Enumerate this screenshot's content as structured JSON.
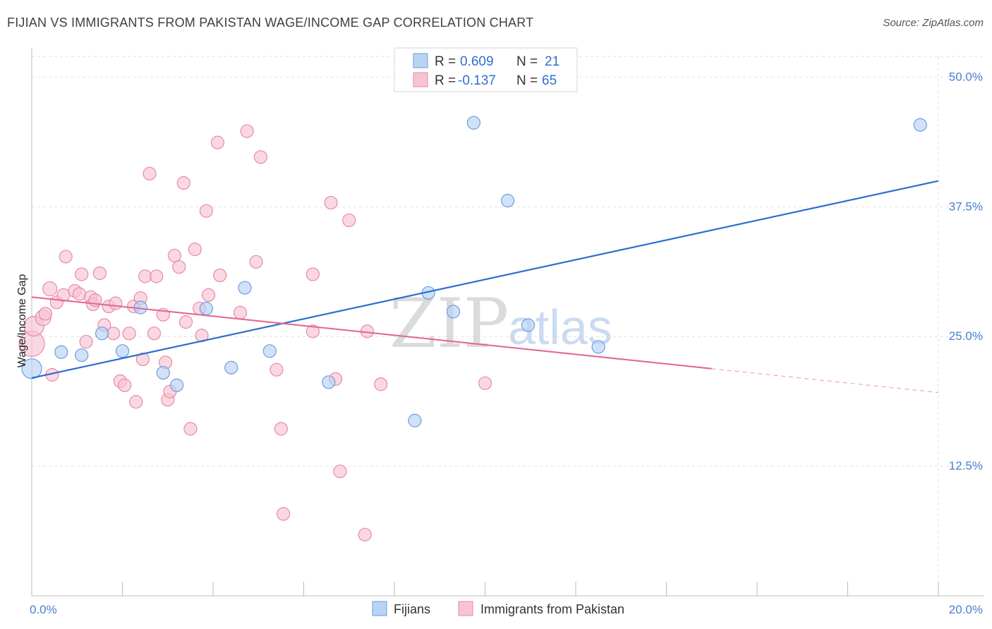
{
  "header": {
    "title": "FIJIAN VS IMMIGRANTS FROM PAKISTAN WAGE/INCOME GAP CORRELATION CHART",
    "source": "Source: ZipAtlas.com"
  },
  "watermark": {
    "zip": "ZIP",
    "atlas": "atlas"
  },
  "colors": {
    "fijian_fill": "#b9d3f5",
    "fijian_stroke": "#6a9ee0",
    "fijian_line": "#2a6fd0",
    "pakistan_fill": "#f8c3d3",
    "pakistan_stroke": "#e88aa8",
    "pakistan_line": "#e36a95",
    "tick_label": "#4a7fd0"
  },
  "legend": {
    "r_label": "R =",
    "n_label": "N =",
    "rows": [
      {
        "series": "Fijians",
        "r": "0.609",
        "n": "21"
      },
      {
        "series": "Immigrants from Pakistan",
        "r": "-0.137",
        "n": "65"
      }
    ]
  },
  "chart_data": {
    "type": "scatter",
    "xlabel": "",
    "ylabel": "Wage/Income Gap",
    "xlim": [
      0,
      20
    ],
    "ylim": [
      0,
      52
    ],
    "x_ticks": [
      0,
      20
    ],
    "x_tick_labels": [
      "0.0%",
      "20.0%"
    ],
    "y_ticks": [
      12.5,
      25,
      37.5,
      50
    ],
    "y_tick_labels": [
      "12.5%",
      "25.0%",
      "37.5%",
      "50.0%"
    ],
    "grid": true,
    "legend_position": "top-center",
    "series": [
      {
        "name": "Fijians",
        "points": [
          [
            0.0,
            21.9,
            14
          ],
          [
            0.65,
            23.5,
            9
          ],
          [
            1.1,
            23.2,
            9
          ],
          [
            1.55,
            25.3,
            9
          ],
          [
            2.0,
            23.6,
            9
          ],
          [
            2.4,
            27.8,
            9
          ],
          [
            2.9,
            21.5,
            9
          ],
          [
            3.2,
            20.3,
            9
          ],
          [
            3.85,
            27.7,
            9
          ],
          [
            4.4,
            22.0,
            9
          ],
          [
            4.7,
            29.7,
            9
          ],
          [
            5.25,
            23.6,
            9
          ],
          [
            6.55,
            20.6,
            9
          ],
          [
            8.45,
            16.9,
            9
          ],
          [
            8.75,
            29.2,
            9
          ],
          [
            9.3,
            27.4,
            9
          ],
          [
            9.75,
            45.6,
            9
          ],
          [
            10.5,
            38.1,
            9
          ],
          [
            10.95,
            26.1,
            9
          ],
          [
            12.5,
            24.0,
            9
          ],
          [
            19.6,
            45.4,
            9
          ]
        ],
        "trend": {
          "x": [
            0,
            20
          ],
          "y": [
            21.0,
            40.0
          ]
        }
      },
      {
        "name": "Immigrants from Pakistan",
        "points": [
          [
            0.0,
            24.3,
            18
          ],
          [
            0.05,
            26.0,
            14
          ],
          [
            0.25,
            26.8,
            11
          ],
          [
            0.3,
            27.2,
            9
          ],
          [
            0.45,
            21.3,
            9
          ],
          [
            0.4,
            29.6,
            10
          ],
          [
            0.55,
            28.3,
            9
          ],
          [
            0.7,
            29.0,
            9
          ],
          [
            0.75,
            32.7,
            9
          ],
          [
            0.95,
            29.4,
            9
          ],
          [
            1.05,
            29.1,
            9
          ],
          [
            1.1,
            31.0,
            9
          ],
          [
            1.2,
            24.5,
            9
          ],
          [
            1.3,
            28.8,
            9
          ],
          [
            1.35,
            28.1,
            9
          ],
          [
            1.4,
            28.5,
            9
          ],
          [
            1.5,
            31.1,
            9
          ],
          [
            1.6,
            26.1,
            9
          ],
          [
            1.7,
            27.9,
            9
          ],
          [
            1.8,
            25.3,
            9
          ],
          [
            1.85,
            28.2,
            9
          ],
          [
            1.95,
            20.7,
            9
          ],
          [
            2.05,
            20.3,
            9
          ],
          [
            2.15,
            25.3,
            9
          ],
          [
            2.25,
            27.9,
            9
          ],
          [
            2.3,
            18.7,
            9
          ],
          [
            2.4,
            28.7,
            9
          ],
          [
            2.45,
            22.8,
            9
          ],
          [
            2.5,
            30.8,
            9
          ],
          [
            2.6,
            40.7,
            9
          ],
          [
            2.7,
            25.3,
            9
          ],
          [
            2.75,
            30.8,
            9
          ],
          [
            2.9,
            27.1,
            9
          ],
          [
            2.95,
            22.5,
            9
          ],
          [
            3.0,
            18.9,
            9
          ],
          [
            3.05,
            19.7,
            9
          ],
          [
            3.15,
            32.8,
            9
          ],
          [
            3.25,
            31.7,
            9
          ],
          [
            3.35,
            39.8,
            9
          ],
          [
            3.4,
            26.4,
            9
          ],
          [
            3.5,
            16.1,
            9
          ],
          [
            3.6,
            33.4,
            9
          ],
          [
            3.7,
            27.7,
            9
          ],
          [
            3.75,
            25.1,
            9
          ],
          [
            3.85,
            37.1,
            9
          ],
          [
            3.9,
            29.0,
            9
          ],
          [
            4.1,
            43.7,
            9
          ],
          [
            4.15,
            30.9,
            9
          ],
          [
            4.6,
            27.3,
            9
          ],
          [
            4.75,
            44.8,
            9
          ],
          [
            4.95,
            32.2,
            9
          ],
          [
            5.05,
            42.3,
            9
          ],
          [
            5.4,
            21.8,
            9
          ],
          [
            5.5,
            16.1,
            9
          ],
          [
            5.55,
            7.9,
            9
          ],
          [
            6.2,
            31.0,
            9
          ],
          [
            6.2,
            25.5,
            9
          ],
          [
            6.6,
            37.9,
            9
          ],
          [
            6.7,
            20.9,
            9
          ],
          [
            6.8,
            12.0,
            9
          ],
          [
            7.0,
            36.2,
            9
          ],
          [
            7.35,
            5.9,
            9
          ],
          [
            7.4,
            25.5,
            9
          ],
          [
            7.7,
            20.4,
            9
          ],
          [
            10.0,
            20.5,
            9
          ]
        ],
        "trend": {
          "x": [
            0,
            15
          ],
          "y": [
            28.8,
            21.9
          ]
        },
        "trend_extension": {
          "x": [
            15,
            20
          ],
          "y": [
            21.9,
            19.6
          ]
        }
      }
    ]
  }
}
